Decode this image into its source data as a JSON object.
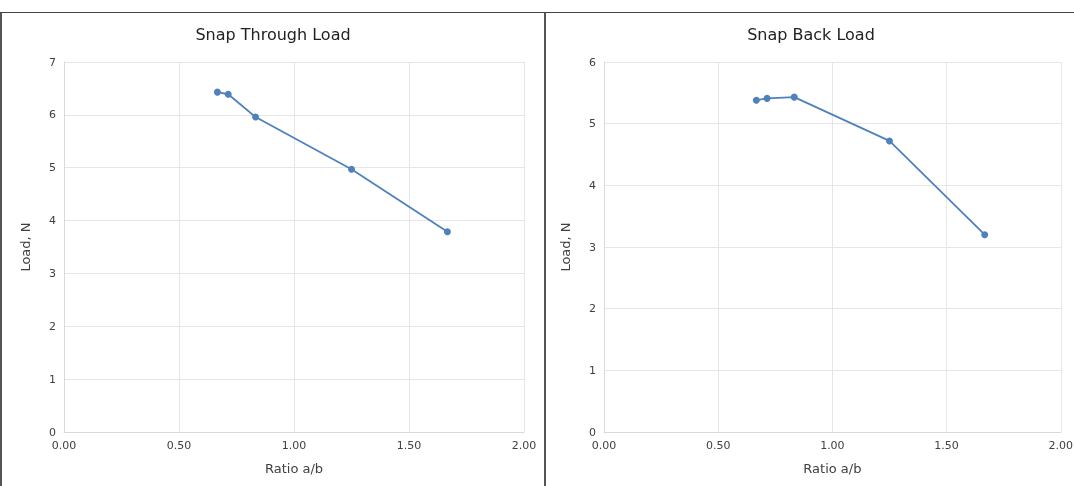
{
  "chart_data": [
    {
      "type": "line",
      "title": "Snap Through Load",
      "xlabel": "Ratio a/b",
      "ylabel": "Load, N",
      "x": [
        0.667,
        0.714,
        0.833,
        1.25,
        1.667
      ],
      "series": [
        {
          "color": "#4f81bd",
          "values": [
            6.43,
            6.39,
            5.96,
            4.97,
            3.79
          ]
        }
      ],
      "xlim": [
        0,
        2
      ],
      "xticks": [
        {
          "value": 0,
          "label": "0.00"
        },
        {
          "value": 0.5,
          "label": "0.50"
        },
        {
          "value": 1,
          "label": "1.00"
        },
        {
          "value": 1.5,
          "label": "1.50"
        },
        {
          "value": 2,
          "label": "2.00"
        }
      ],
      "ylim": [
        0,
        7
      ],
      "yticks": [
        0,
        1,
        2,
        3,
        4,
        5,
        6,
        7
      ],
      "grid": true,
      "marker": "circle",
      "line_style": "solid"
    },
    {
      "type": "line",
      "title": "Snap Back Load",
      "xlabel": "Ratio a/b",
      "ylabel": "Load, N",
      "x": [
        0.667,
        0.714,
        0.833,
        1.25,
        1.667
      ],
      "series": [
        {
          "color": "#4f81bd",
          "values": [
            5.38,
            5.41,
            5.43,
            4.72,
            3.2
          ]
        }
      ],
      "xlim": [
        0,
        2
      ],
      "xticks": [
        {
          "value": 0,
          "label": "0.00"
        },
        {
          "value": 0.5,
          "label": "0.50"
        },
        {
          "value": 1,
          "label": "1.00"
        },
        {
          "value": 1.5,
          "label": "1.50"
        },
        {
          "value": 2,
          "label": "2.00"
        }
      ],
      "ylim": [
        0,
        6
      ],
      "yticks": [
        0,
        1,
        2,
        3,
        4,
        5,
        6
      ],
      "grid": true,
      "marker": "circle",
      "line_style": "solid"
    }
  ]
}
